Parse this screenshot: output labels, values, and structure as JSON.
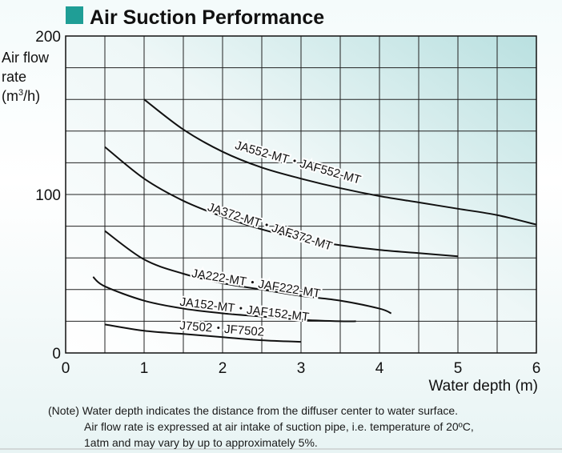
{
  "title": "Air Suction Performance",
  "colors": {
    "title_square": "#1f9e96",
    "plot_bg_light": "#ffffff",
    "plot_bg_teal": "#b9e0e0",
    "line": "#111111"
  },
  "axis": {
    "ylabel_line1": "Air flow",
    "ylabel_line2": "rate",
    "ylabel_line3_pre": "(m",
    "ylabel_line3_sup": "3",
    "ylabel_line3_post": "/h)",
    "xlabel": "Water depth (m)"
  },
  "note": {
    "line1": "(Note) Water depth indicates the distance from the diffuser center to water surface.",
    "line2": "Air flow rate is expressed at air intake of suction pipe, i.e. temperature of 20ºC,",
    "line3": "1atm and may vary by up to approximately 5%."
  },
  "chart_data": {
    "type": "line",
    "title": "Air Suction Performance",
    "xlabel": "Water depth (m)",
    "ylabel": "Air flow rate (m3/h)",
    "xlim": [
      0,
      6
    ],
    "ylim": [
      0,
      200
    ],
    "x_ticks": [
      0,
      1,
      2,
      3,
      4,
      5,
      6
    ],
    "y_ticks": [
      0,
      100,
      200
    ],
    "grid": true,
    "series": [
      {
        "name": "JA552-MT・JAF552-MT",
        "x": [
          1.0,
          1.5,
          2.0,
          2.5,
          3.0,
          3.5,
          4.0,
          4.5,
          5.0,
          5.5,
          6.0
        ],
        "y": [
          160,
          141,
          127,
          117,
          110,
          104,
          99,
          95,
          91,
          87,
          81
        ],
        "label_at": [
          2.15,
          129
        ]
      },
      {
        "name": "JA372-MT・JAF372-MT",
        "x": [
          0.5,
          1.0,
          1.5,
          2.0,
          2.5,
          3.0,
          3.5,
          4.0,
          4.5,
          5.0
        ],
        "y": [
          130,
          110,
          96,
          86,
          78,
          72,
          68,
          65,
          63,
          61
        ],
        "label_at": [
          1.8,
          90
        ]
      },
      {
        "name": "JA222-MT・JAF222-MT",
        "x": [
          0.5,
          1.0,
          1.5,
          2.0,
          2.5,
          3.0,
          3.5,
          4.0,
          4.15
        ],
        "y": [
          77,
          59,
          50,
          44,
          40,
          36,
          33,
          28,
          25
        ],
        "label_at": [
          1.6,
          48
        ]
      },
      {
        "name": "JA152-MT・JAF152-MT",
        "x": [
          0.35,
          0.5,
          1.0,
          1.5,
          2.0,
          2.5,
          3.0,
          3.5,
          3.7
        ],
        "y": [
          48,
          42,
          33,
          28,
          25,
          23,
          21,
          20,
          20
        ],
        "label_at": [
          1.45,
          30
        ]
      },
      {
        "name": "J7502・JF7502",
        "x": [
          0.5,
          1.0,
          1.5,
          2.0,
          2.5,
          3.0
        ],
        "y": [
          18,
          14,
          12,
          10,
          8,
          7
        ],
        "label_at": [
          1.45,
          15
        ]
      }
    ]
  }
}
